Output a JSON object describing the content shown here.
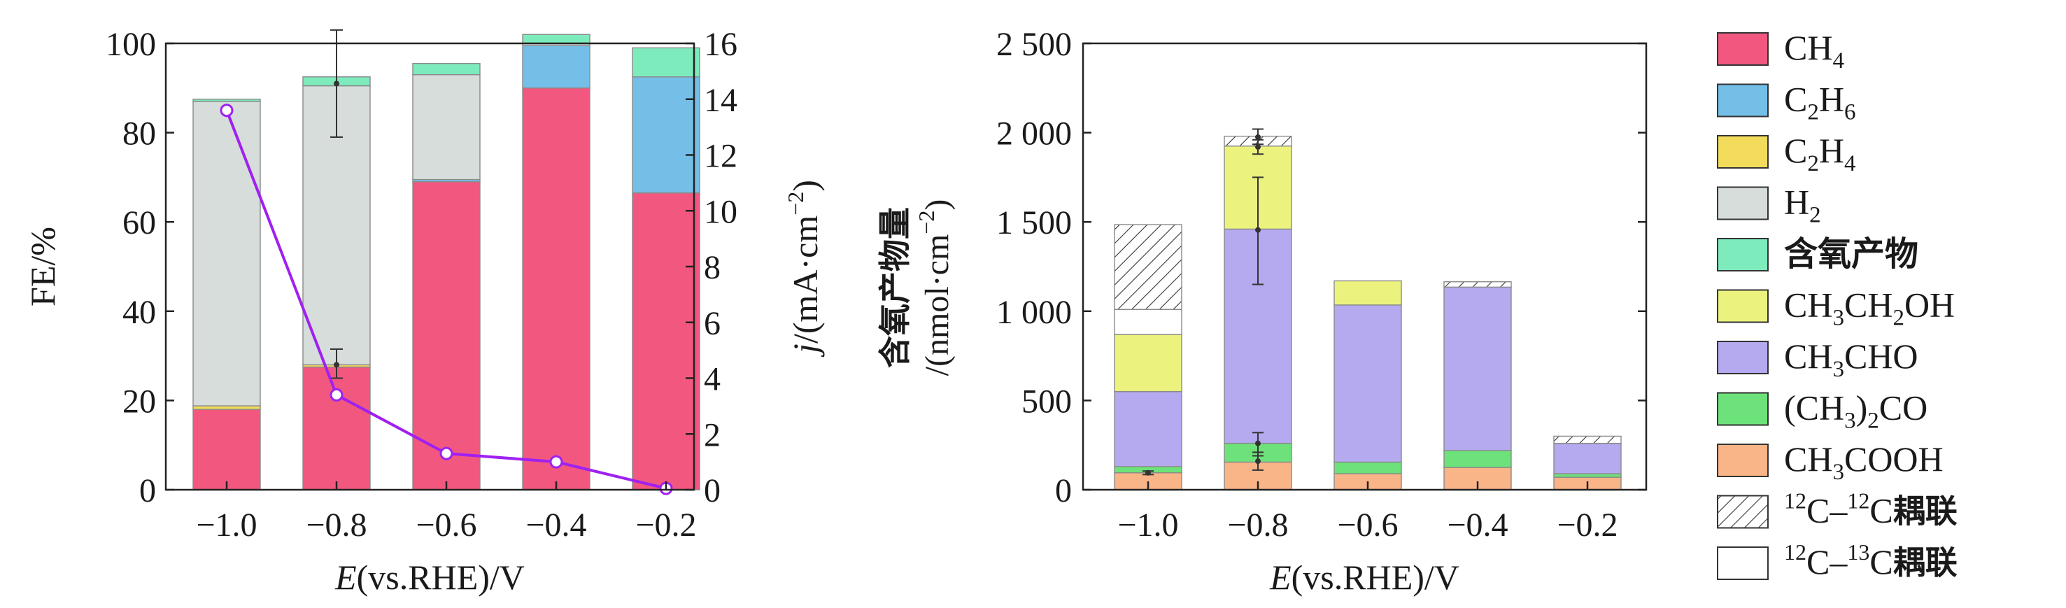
{
  "colors": {
    "CH4": "#f2577f",
    "C2H6": "#74bfe8",
    "C2H4": "#f3dc5c",
    "H2": "#d6ddda",
    "oxygenates": "#7eebbd",
    "CH3CH2OH": "#ebf37e",
    "CH3CHO": "#b5a9ef",
    "CH3_2CO": "#6ee27a",
    "CH3COOH": "#f9b487",
    "line": "#a020f0"
  },
  "legend": [
    {
      "key": "CH4",
      "label": "CH",
      "sub": "4"
    },
    {
      "key": "C2H6",
      "label": "C",
      "sub": "2",
      "label2": "H",
      "sub2": "6"
    },
    {
      "key": "C2H4",
      "label": "C",
      "sub": "2",
      "label2": "H",
      "sub2": "4"
    },
    {
      "key": "H2",
      "label": "H",
      "sub": "2"
    },
    {
      "key": "oxygenates",
      "label": "含氧产物",
      "cjk": true
    },
    {
      "key": "CH3CH2OH",
      "label": "CH",
      "sub": "3",
      "label2": "CH",
      "sub2": "2",
      "label3": "OH"
    },
    {
      "key": "CH3CHO",
      "label": "CH",
      "sub": "3",
      "label2": "CHO"
    },
    {
      "key": "CH3_2CO",
      "label": "(CH",
      "sub": "3",
      "label2": ")",
      "sub2": "2",
      "label3": "CO"
    },
    {
      "key": "CH3COOH",
      "label": "CH",
      "sub": "3",
      "label2": "COOH"
    },
    {
      "key": "c12c12",
      "label": "12C–12C耦联",
      "sup1": "12",
      "mid": "C–",
      "sup2": "12",
      "tail": "C耦联",
      "pattern": "hatch"
    },
    {
      "key": "c12c13",
      "label": "12C–13C耦联",
      "sup1": "12",
      "mid": "C–",
      "sup2": "13",
      "tail": "C耦联",
      "pattern": "none"
    }
  ],
  "chart_data": [
    {
      "type": "bar",
      "stacked": true,
      "categories": [
        "−1.0",
        "−0.8",
        "−0.6",
        "−0.4",
        "−0.2"
      ],
      "xlabel": "E(vs.RHE)/V",
      "ylabel": "FE/%",
      "ylim": [
        0,
        100
      ],
      "yticks": [
        "0",
        "20",
        "40",
        "60",
        "80",
        "100"
      ],
      "y2label": "j/(mA·cm−2)",
      "y2lim": [
        0,
        16
      ],
      "y2ticks": [
        "0",
        "2",
        "4",
        "6",
        "8",
        "10",
        "12",
        "14",
        "16"
      ],
      "series": [
        {
          "key": "CH4",
          "values": [
            18,
            27.5,
            69,
            90,
            66.5
          ]
        },
        {
          "key": "C2H6",
          "values": [
            0,
            0,
            0.5,
            9.5,
            26
          ]
        },
        {
          "key": "C2H4",
          "values": [
            0.8,
            0.5,
            0,
            0,
            0
          ]
        },
        {
          "key": "H2",
          "values": [
            68.2,
            62.5,
            23.5,
            0.5,
            0
          ]
        },
        {
          "key": "oxygenates",
          "values": [
            0.5,
            2,
            2.5,
            2,
            6.5
          ]
        }
      ],
      "error_bars": [
        {
          "category": "−0.8",
          "series": "CH4",
          "value": 28,
          "low": 25,
          "high": 31.5
        },
        {
          "category": "−0.8",
          "series": "total",
          "value": 91,
          "low": 79,
          "high": 103
        }
      ],
      "line_series": {
        "axis": "y2",
        "color": "#a020f0",
        "values": [
          13.6,
          3.4,
          1.3,
          1.0,
          0.05
        ]
      }
    },
    {
      "type": "bar",
      "stacked": true,
      "categories": [
        "−1.0",
        "−0.8",
        "−0.6",
        "−0.4",
        "−0.2"
      ],
      "xlabel": "E(vs.RHE)/V",
      "ylabel": "含氧产物量",
      "ylabel2": "/(nmol·cm−2)",
      "ylim": [
        0,
        2500
      ],
      "yticks": [
        "0",
        "500",
        "1 000",
        "1 500",
        "2 000",
        "2 500"
      ],
      "series": [
        {
          "key": "CH3COOH",
          "values": [
            95,
            155,
            90,
            125,
            70
          ]
        },
        {
          "key": "CH3_2CO",
          "values": [
            35,
            105,
            65,
            95,
            20
          ]
        },
        {
          "key": "CH3CHO",
          "values": [
            420,
            1200,
            880,
            915,
            170
          ]
        },
        {
          "key": "CH3CH2OH",
          "values": [
            320,
            465,
            135,
            0,
            0
          ]
        },
        {
          "key": "c12c13",
          "values": [
            140,
            0,
            0,
            0,
            0
          ]
        },
        {
          "key": "c12c12",
          "values": [
            475,
            55,
            0,
            30,
            40
          ]
        }
      ],
      "error_bars": [
        {
          "category": "−1.0",
          "series": "CH3COOH",
          "value": 95,
          "low": 85,
          "high": 105
        },
        {
          "category": "−0.8",
          "series": "CH3COOH",
          "value": 160,
          "low": 110,
          "high": 210
        },
        {
          "category": "−0.8",
          "series": "CH3_2CO",
          "value": 260,
          "low": 190,
          "high": 320
        },
        {
          "category": "−0.8",
          "series": "CH3CHO",
          "value": 1455,
          "low": 1150,
          "high": 1750
        },
        {
          "category": "−0.8",
          "series": "CH3CH2OH",
          "value": 1920,
          "low": 1880,
          "high": 1960
        },
        {
          "category": "−0.8",
          "series": "total",
          "value": 1975,
          "low": 1935,
          "high": 2020
        }
      ]
    }
  ]
}
